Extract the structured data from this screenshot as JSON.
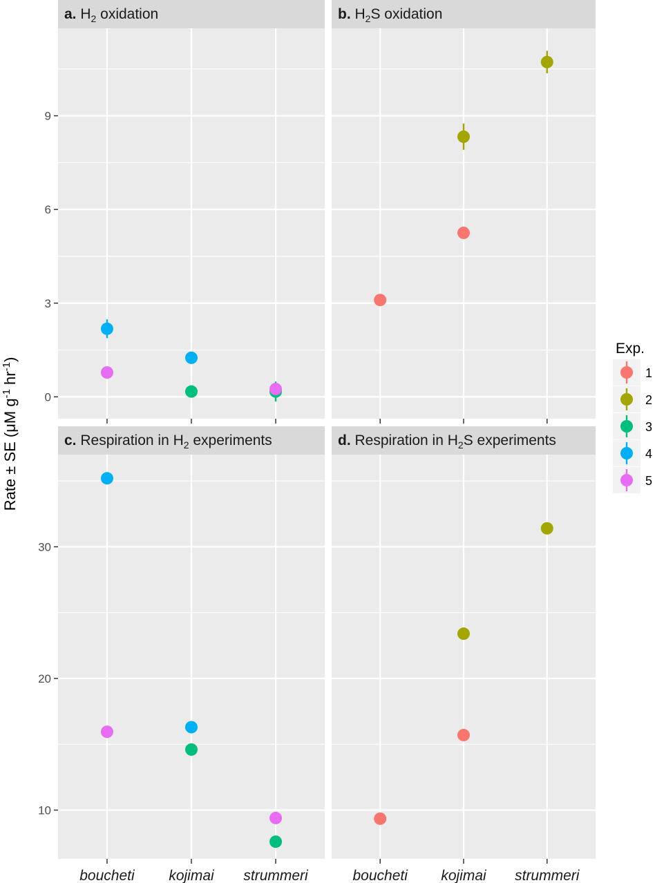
{
  "chart_data": {
    "type": "scatter",
    "ylabel": "Rate ± SE (μM g⁻¹ hr⁻¹)",
    "ylabel_parts": {
      "main": "Rate ± SE (μM g",
      "sup1": "-1",
      "mid": " hr",
      "sup2": "-1",
      "end": ")"
    },
    "categories": [
      "boucheti",
      "kojimai",
      "strummeri"
    ],
    "legend": {
      "title": "Exp.",
      "entries": [
        {
          "label": "1",
          "color": "#F8766D"
        },
        {
          "label": "2",
          "color": "#A3A500"
        },
        {
          "label": "3",
          "color": "#00BF7D"
        },
        {
          "label": "4",
          "color": "#00B0F6"
        },
        {
          "label": "5",
          "color": "#E76BF3"
        }
      ]
    },
    "panels": [
      {
        "id": "a",
        "title": {
          "prefix": "a.",
          "parts": [
            {
              "text": " H"
            },
            {
              "sub": "2"
            },
            {
              "text": " oxidation"
            }
          ]
        },
        "ylim": [
          -0.7,
          11.8
        ],
        "yticks": [
          0,
          3,
          6,
          9
        ],
        "ytick_labels": [
          "0",
          "3",
          "6",
          "9"
        ],
        "points": [
          {
            "category": "boucheti",
            "exp": "4",
            "y": 2.18,
            "se": 0.3
          },
          {
            "category": "boucheti",
            "exp": "5",
            "y": 0.78,
            "se": 0.0
          },
          {
            "category": "kojimai",
            "exp": "4",
            "y": 1.25,
            "se": 0.0
          },
          {
            "category": "kojimai",
            "exp": "3",
            "y": 0.17,
            "se": 0.0
          },
          {
            "category": "strummeri",
            "exp": "3",
            "y": 0.17,
            "se": 0.32
          },
          {
            "category": "strummeri",
            "exp": "5",
            "y": 0.25,
            "se": 0.0
          }
        ]
      },
      {
        "id": "b",
        "title": {
          "prefix": "b.",
          "parts": [
            {
              "text": " H"
            },
            {
              "sub": "2"
            },
            {
              "text": "S oxidation"
            }
          ]
        },
        "ylim": [
          -0.7,
          11.8
        ],
        "yticks": [
          0,
          3,
          6,
          9
        ],
        "ytick_labels": [],
        "points": [
          {
            "category": "boucheti",
            "exp": "1",
            "y": 3.1,
            "se": 0.0
          },
          {
            "category": "kojimai",
            "exp": "2",
            "y": 8.33,
            "se": 0.42
          },
          {
            "category": "kojimai",
            "exp": "1",
            "y": 5.25,
            "se": 0.0
          },
          {
            "category": "strummeri",
            "exp": "2",
            "y": 10.72,
            "se": 0.36
          }
        ]
      },
      {
        "id": "c",
        "title": {
          "prefix": "c.",
          "parts": [
            {
              "text": " Respiration in H"
            },
            {
              "sub": "2"
            },
            {
              "text": " experiments"
            }
          ]
        },
        "ylim": [
          6.3,
          37.0
        ],
        "yticks": [
          10,
          20,
          30
        ],
        "ytick_labels": [
          "10",
          "20",
          "30"
        ],
        "points": [
          {
            "category": "boucheti",
            "exp": "4",
            "y": 35.2,
            "se": 0.0
          },
          {
            "category": "boucheti",
            "exp": "5",
            "y": 15.95,
            "se": 0.0
          },
          {
            "category": "kojimai",
            "exp": "4",
            "y": 16.3,
            "se": 0.0
          },
          {
            "category": "kojimai",
            "exp": "3",
            "y": 14.6,
            "se": 0.0
          },
          {
            "category": "strummeri",
            "exp": "5",
            "y": 9.4,
            "se": 0.0
          },
          {
            "category": "strummeri",
            "exp": "3",
            "y": 7.6,
            "se": 0.0
          }
        ]
      },
      {
        "id": "d",
        "title": {
          "prefix": "d.",
          "parts": [
            {
              "text": " Respiration in H"
            },
            {
              "sub": "2"
            },
            {
              "text": "S experiments"
            }
          ]
        },
        "ylim": [
          6.3,
          37.0
        ],
        "yticks": [
          10,
          20,
          30
        ],
        "ytick_labels": [],
        "points": [
          {
            "category": "boucheti",
            "exp": "1",
            "y": 9.35,
            "se": 0.0
          },
          {
            "category": "kojimai",
            "exp": "2",
            "y": 23.4,
            "se": 0.0
          },
          {
            "category": "kojimai",
            "exp": "1",
            "y": 15.7,
            "se": 0.0
          },
          {
            "category": "strummeri",
            "exp": "2",
            "y": 31.4,
            "se": 0.0
          }
        ]
      }
    ]
  }
}
